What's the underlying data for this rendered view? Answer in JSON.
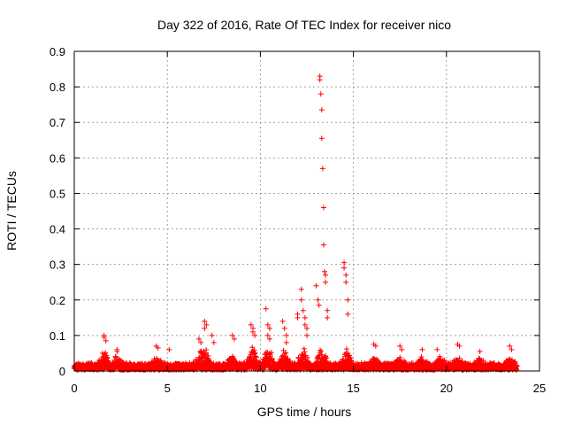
{
  "chart_data": {
    "type": "scatter",
    "title": "Day 322 of 2016, Rate Of TEC Index for receiver nico",
    "xlabel": "GPS time / hours",
    "ylabel": "ROTI / TECUs",
    "xlim": [
      0,
      25
    ],
    "ylim": [
      0,
      0.9
    ],
    "x_ticks": [
      "0",
      "5",
      "10",
      "15",
      "20",
      "25"
    ],
    "y_ticks": [
      "0",
      "0.1",
      "0.2",
      "0.3",
      "0.4",
      "0.5",
      "0.6",
      "0.7",
      "0.8",
      "0.9"
    ],
    "grid": true,
    "marker": "plus",
    "color": "#ff0000",
    "series": [
      {
        "x": [
          1.6,
          1.6,
          1.7,
          2.3,
          2.3,
          4.4,
          4.5,
          5.1,
          6.7,
          6.8,
          7.0,
          7.0,
          7.1,
          7.4,
          7.5,
          8.5,
          8.6,
          9.5,
          9.6,
          9.6,
          9.7,
          10.3,
          10.4,
          10.4,
          10.5,
          10.5,
          11.2,
          11.3,
          11.4,
          11.4,
          12.0,
          12.0,
          12.2,
          12.2,
          12.3,
          12.4,
          12.4,
          12.5,
          12.5,
          13.0,
          13.1,
          13.15,
          13.2,
          13.2,
          13.25,
          13.3,
          13.3,
          13.35,
          13.4,
          13.4,
          13.45,
          13.5,
          13.5,
          13.6,
          13.6,
          14.5,
          14.5,
          14.6,
          14.6,
          14.7,
          14.7,
          16.1,
          16.2,
          17.5,
          17.6,
          18.7,
          19.5,
          20.6,
          20.7,
          21.8,
          23.4,
          23.5
        ],
        "y": [
          0.1,
          0.095,
          0.085,
          0.06,
          0.055,
          0.07,
          0.065,
          0.06,
          0.09,
          0.08,
          0.14,
          0.12,
          0.13,
          0.1,
          0.08,
          0.1,
          0.09,
          0.13,
          0.12,
          0.11,
          0.1,
          0.175,
          0.13,
          0.1,
          0.12,
          0.09,
          0.14,
          0.12,
          0.1,
          0.08,
          0.16,
          0.15,
          0.23,
          0.2,
          0.17,
          0.15,
          0.13,
          0.12,
          0.1,
          0.24,
          0.2,
          0.185,
          0.83,
          0.82,
          0.78,
          0.735,
          0.655,
          0.57,
          0.46,
          0.355,
          0.28,
          0.27,
          0.25,
          0.17,
          0.15,
          0.305,
          0.29,
          0.27,
          0.25,
          0.2,
          0.16,
          0.075,
          0.07,
          0.07,
          0.06,
          0.06,
          0.06,
          0.075,
          0.07,
          0.055,
          0.07,
          0.06
        ]
      }
    ]
  }
}
